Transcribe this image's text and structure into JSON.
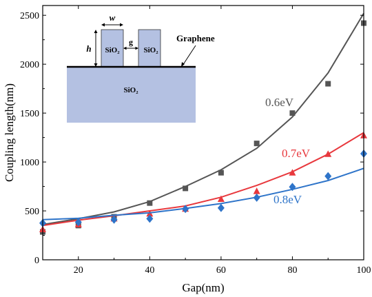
{
  "chart_data": {
    "type": "scatter",
    "xlabel": "Gap(nm)",
    "ylabel": "Coupling length(nm)",
    "xlim": [
      10,
      100
    ],
    "ylim": [
      0,
      2600
    ],
    "xticks": [
      20,
      40,
      60,
      80,
      100
    ],
    "yticks": [
      0,
      500,
      1000,
      1500,
      2000,
      2500
    ],
    "grid": false,
    "x": [
      10,
      20,
      30,
      40,
      50,
      60,
      70,
      80,
      90,
      100
    ],
    "series": [
      {
        "name": "0.6eV",
        "color": "#555555",
        "marker": "square",
        "points": [
          285,
          350,
          440,
          580,
          730,
          890,
          1190,
          1500,
          1800,
          2420
        ],
        "fit": [
          360,
          420,
          490,
          595,
          750,
          920,
          1140,
          1460,
          1910,
          2520
        ]
      },
      {
        "name": "0.7eV",
        "color": "#e8383d",
        "marker": "triangle",
        "points": [
          310,
          360,
          420,
          470,
          520,
          620,
          700,
          890,
          1080,
          1270
        ],
        "fit": [
          350,
          405,
          450,
          500,
          550,
          640,
          760,
          900,
          1080,
          1300
        ]
      },
      {
        "name": "0.8eV",
        "color": "#2e74c9",
        "marker": "diamond",
        "points": [
          375,
          385,
          410,
          420,
          520,
          530,
          635,
          745,
          855,
          1085
        ],
        "fit": [
          410,
          425,
          455,
          480,
          525,
          575,
          640,
          720,
          810,
          935
        ]
      }
    ],
    "inset": {
      "labels": {
        "width": "w",
        "height": "h",
        "gap": "g",
        "left_waveguide": "SiO₂",
        "right_waveguide": "SiO₂",
        "substrate": "SiO₂",
        "sheet": "Graphene"
      },
      "fill_color": "#b4c1e2"
    }
  }
}
